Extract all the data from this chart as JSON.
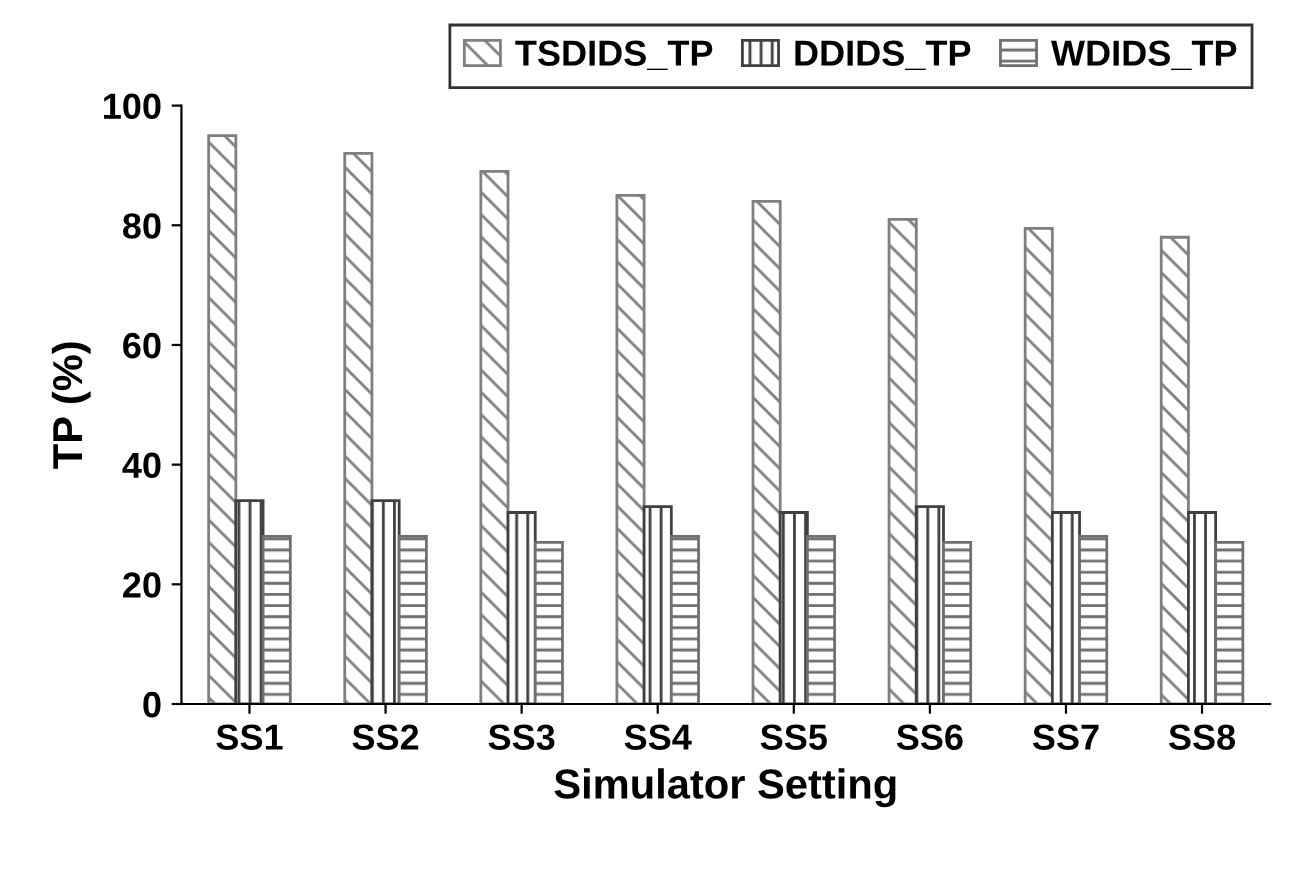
{
  "chart_data": {
    "type": "bar",
    "xlabel": "Simulator Setting",
    "ylabel": "TP (%)",
    "categories": [
      "SS1",
      "SS2",
      "SS3",
      "SS4",
      "SS5",
      "SS6",
      "SS7",
      "SS8"
    ],
    "series": [
      {
        "name": "TSDIDS_TP",
        "color": "#7f7f7f",
        "values": [
          95,
          92,
          89,
          85,
          84,
          81,
          79.5,
          78
        ]
      },
      {
        "name": "DDIDS_TP",
        "color": "#404040",
        "values": [
          34,
          34,
          32,
          33,
          32,
          33,
          32,
          32
        ]
      },
      {
        "name": "WDIDS_TP",
        "color": "#6f6f6f",
        "values": [
          28,
          28,
          27,
          28,
          28,
          27,
          28,
          27
        ]
      }
    ],
    "ylim": [
      0,
      100
    ],
    "yticks": [
      0,
      20,
      40,
      60,
      80,
      100
    ],
    "grid": false,
    "legend": "top right"
  }
}
